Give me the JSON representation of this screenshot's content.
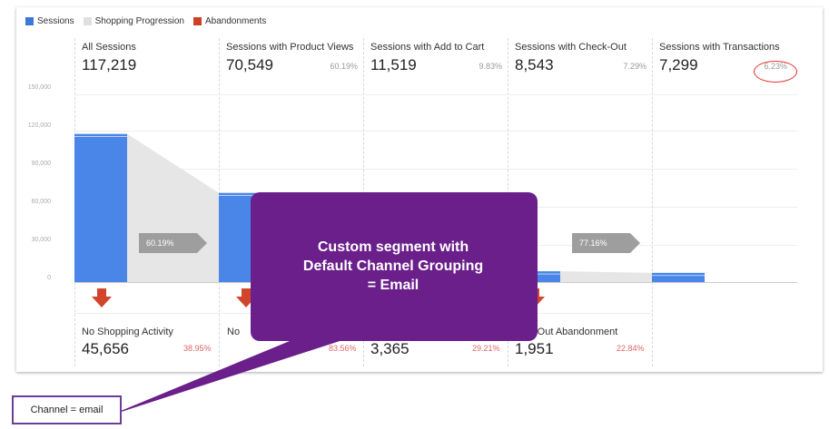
{
  "legend": [
    {
      "label": "Sessions",
      "color": "#3c78d8"
    },
    {
      "label": "Shopping Progression",
      "color": "#e0e0e0"
    },
    {
      "label": "Abandonments",
      "color": "#cc4125"
    }
  ],
  "stages": [
    {
      "label": "All Sessions",
      "value": "117,219",
      "pct": ""
    },
    {
      "label": "Sessions with Product Views",
      "value": "70,549",
      "pct": "60.19%"
    },
    {
      "label": "Sessions with Add to Cart",
      "value": "11,519",
      "pct": "9.83%"
    },
    {
      "label": "Sessions with Check-Out",
      "value": "8,543",
      "pct": "7.29%"
    },
    {
      "label": "Sessions with Transactions",
      "value": "7,299",
      "pct": "6.23%"
    }
  ],
  "progress_tags": [
    "60.19%",
    "77.16%"
  ],
  "abandonments": [
    {
      "label": "No Shopping Activity",
      "value": "45,656",
      "pct": "38.95%"
    },
    {
      "label": "No",
      "value": "",
      "pct": "83.56%"
    },
    {
      "label": "",
      "value": "3,365",
      "pct": "29.21%"
    },
    {
      "label": "ck-Out Abandonment",
      "value": "1,951",
      "pct": "22.84%"
    }
  ],
  "y_ticks": [
    "150,000",
    "120,000",
    "90,000",
    "60,000",
    "30,000",
    "0"
  ],
  "callout": {
    "line1": "Custom segment with",
    "line2": "Default Channel Grouping",
    "line3": "= Email"
  },
  "channel_label": "Channel = email",
  "colors": {
    "sessions_bar": "#4a86e8",
    "callout": "#6a1f8a",
    "abandon_arrow": "#d0452c"
  },
  "chart_data": {
    "type": "bar",
    "categories": [
      "All Sessions",
      "Sessions with Product Views",
      "Sessions with Add to Cart",
      "Sessions with Check-Out",
      "Sessions with Transactions"
    ],
    "values": [
      117219,
      70549,
      11519,
      8543,
      7299
    ],
    "ylim": [
      0,
      150000
    ]
  }
}
